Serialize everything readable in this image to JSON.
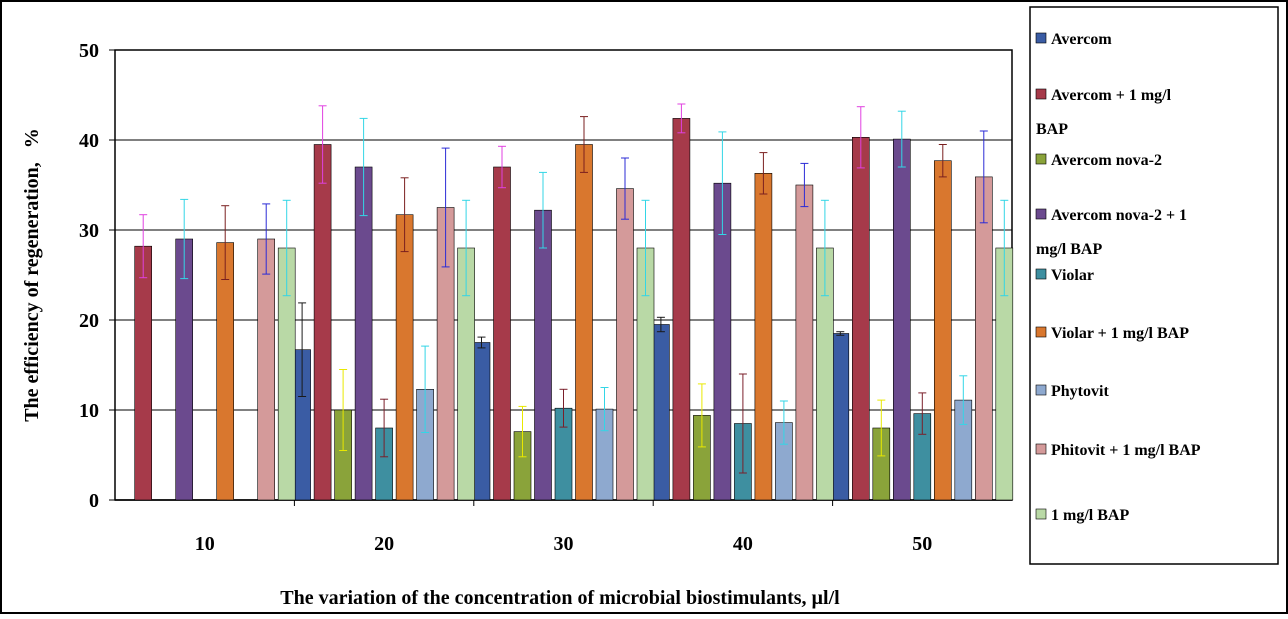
{
  "chart_data": {
    "type": "bar",
    "title": "",
    "xlabel": "The variation of the concentration of microbial biostimulants, µl/l",
    "ylabel_main": "The efficiency of regeneration,",
    "ylabel_unit": "%",
    "ylim": [
      0,
      50
    ],
    "yticks": [
      0,
      10,
      20,
      30,
      40,
      50
    ],
    "ytick_labels": [
      "0",
      "10",
      "20",
      "30",
      "40",
      "50"
    ],
    "grid": true,
    "legend_placement": "right",
    "categories": [
      "10",
      "20",
      "30",
      "40",
      "50"
    ],
    "series": [
      {
        "name": "Avercom",
        "color": "#3a5ca4",
        "err_color": "#1a1a1a",
        "values": [
          0,
          16.7,
          17.5,
          19.5,
          18.5
        ],
        "errors": [
          0,
          5.2,
          0.6,
          0.8,
          0.2
        ]
      },
      {
        "name": "Avercom + 1 mg/l BAP",
        "color": "#a63a4a",
        "err_color": "#e040e0",
        "values": [
          28.2,
          39.5,
          37,
          42.4,
          40.3
        ],
        "errors": [
          3.5,
          4.3,
          2.3,
          1.6,
          3.4
        ]
      },
      {
        "name": "Avercom nova-2",
        "color": "#8aa33a",
        "err_color": "#e8e800",
        "values": [
          0,
          10,
          7.6,
          9.4,
          8
        ],
        "errors": [
          0,
          4.5,
          2.8,
          3.5,
          3.1
        ]
      },
      {
        "name": "Avercom nova-2 + 1 mg/l BAP",
        "color": "#6b4a8e",
        "err_color": "#33d6e6",
        "values": [
          29,
          37,
          32.2,
          35.2,
          40.1
        ],
        "errors": [
          4.4,
          5.4,
          4.2,
          5.7,
          3.1
        ]
      },
      {
        "name": "Violar",
        "color": "#3e8fa0",
        "err_color": "#7a1f2a",
        "values": [
          0,
          8,
          10.2,
          8.5,
          9.6
        ],
        "errors": [
          0,
          3.2,
          2.1,
          5.5,
          2.3
        ]
      },
      {
        "name": "Violar + 1 mg/l BAP",
        "color": "#d9772e",
        "err_color": "#7a1f1f",
        "values": [
          28.6,
          31.7,
          39.5,
          36.3,
          37.7
        ],
        "errors": [
          4.1,
          4.1,
          3.1,
          2.3,
          1.8
        ]
      },
      {
        "name": "Phytovit",
        "color": "#8ea9cf",
        "err_color": "#33d6e6",
        "values": [
          0,
          12.3,
          10.1,
          8.6,
          11.1
        ],
        "errors": [
          0,
          4.8,
          2.4,
          2.4,
          2.7
        ]
      },
      {
        "name": "Phitovit + 1 mg/l BAP",
        "color": "#d49a9a",
        "err_color": "#2b2bd6",
        "values": [
          29,
          32.5,
          34.6,
          35,
          35.9
        ],
        "errors": [
          3.9,
          6.6,
          3.4,
          2.4,
          5.1
        ]
      },
      {
        "name": "1 mg/l BAP",
        "color": "#b9d9a6",
        "err_color": "#33d6e6",
        "values": [
          28,
          28,
          28,
          28,
          28
        ],
        "errors": [
          5.3,
          5.3,
          5.3,
          5.3,
          5.3
        ]
      }
    ]
  }
}
